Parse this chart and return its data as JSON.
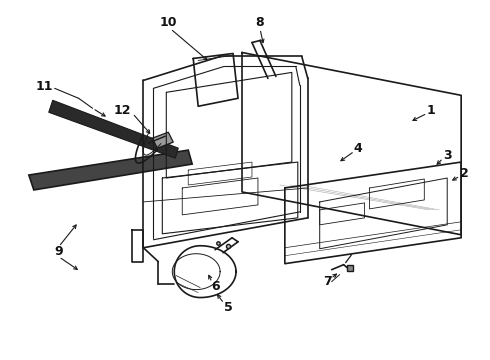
{
  "bg_color": "#ffffff",
  "line_color": "#1a1a1a",
  "label_color": "#111111",
  "fig_width": 4.9,
  "fig_height": 3.6,
  "dpi": 100
}
